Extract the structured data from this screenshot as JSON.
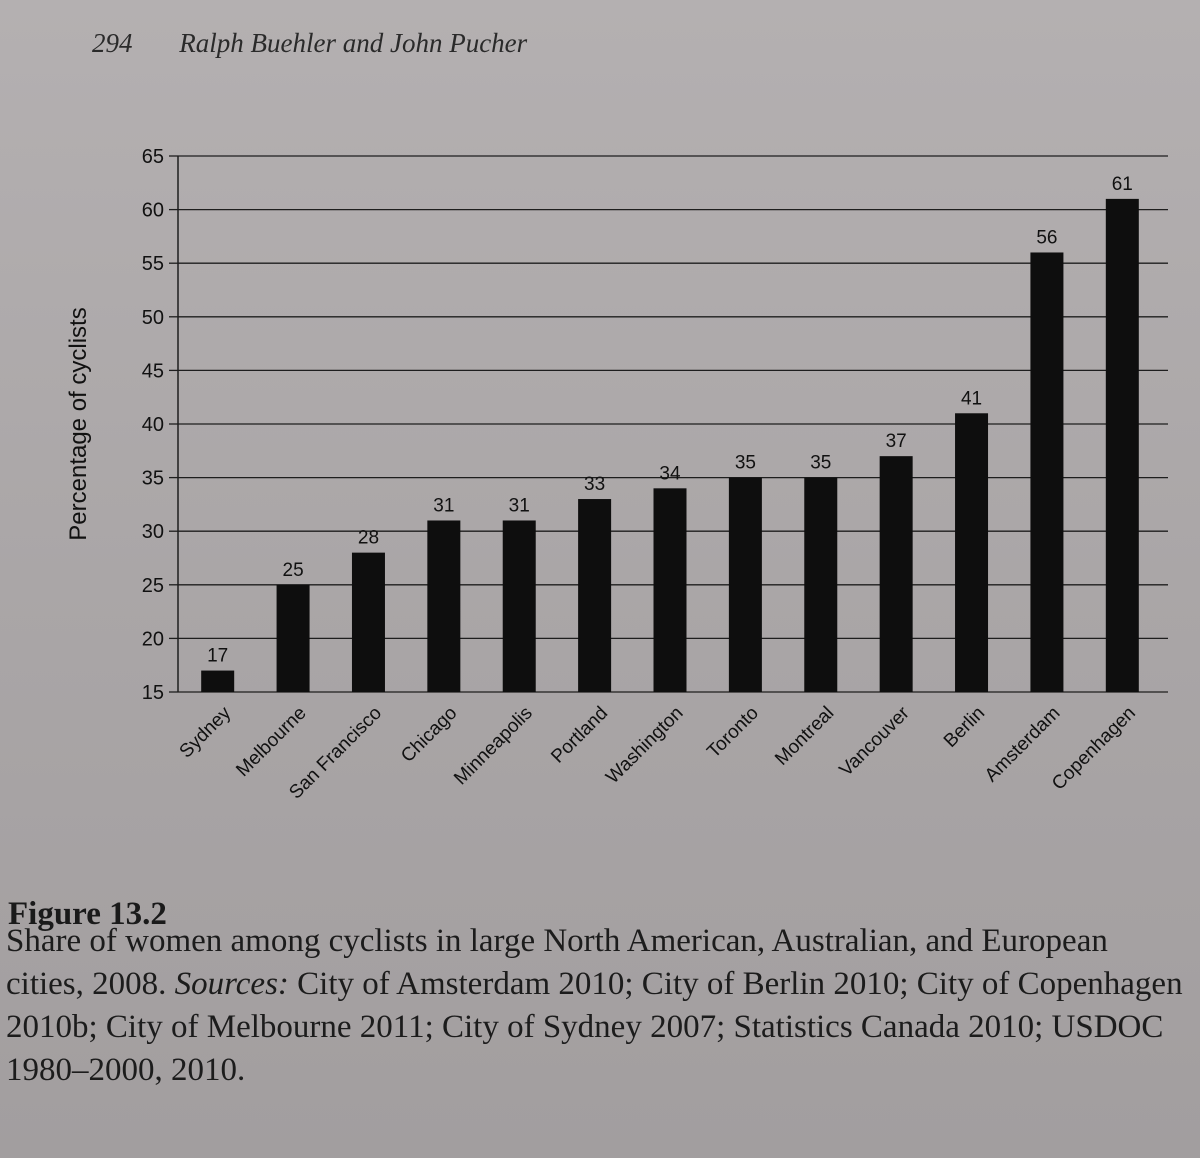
{
  "header": {
    "page_number": "294",
    "authors": "Ralph Buehler and John Pucher"
  },
  "chart_data": {
    "type": "bar",
    "title": "",
    "xlabel": "",
    "ylabel": "Percentage of cyclists",
    "ylim": [
      15,
      65
    ],
    "yticks": [
      15,
      20,
      25,
      30,
      35,
      40,
      45,
      50,
      55,
      60,
      65
    ],
    "grid": true,
    "categories": [
      "Sydney",
      "Melbourne",
      "San Francisco",
      "Chicago",
      "Minneapolis",
      "Portland",
      "Washington",
      "Toronto",
      "Montreal",
      "Vancouver",
      "Berlin",
      "Amsterdam",
      "Copenhagen"
    ],
    "values": [
      17,
      25,
      28,
      31,
      31,
      33,
      34,
      35,
      35,
      37,
      41,
      56,
      61
    ],
    "bar_color": "#0e0e0e",
    "grid_color": "#1e1e1e"
  },
  "figure": {
    "label": "Figure 13.2",
    "caption_main": "Share of women among cyclists in large North American, Australian, and European cities, 2008.",
    "sources_label": "Sources:",
    "sources_text": "City of Amsterdam 2010; City of Berlin 2010; City of Copenhagen 2010b; City of Melbourne 2011; City of Sydney 2007; Statistics Canada 2010; USDOC 1980–2000, 2010."
  }
}
